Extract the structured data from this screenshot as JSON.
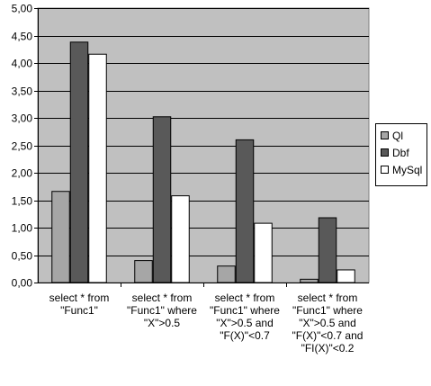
{
  "chart_data": {
    "type": "bar",
    "categories": [
      "select * from\n\"Func1\"",
      "select * from\n\"Func1\" where\n\"X\">0.5",
      "select * from\n\"Func1\" where\n\"X\">0.5 and\n\"F(X)\"<0.7",
      "select * from\n\"Func1\" where\n\"X\">0.5 and\n\"F(X)\"<0.7 and\n\"FI(X)\"<0.2"
    ],
    "series": [
      {
        "name": "Ql",
        "color": "#a6a6a6",
        "values": [
          1.66,
          0.4,
          0.3,
          0.06
        ]
      },
      {
        "name": "Dbf",
        "color": "#595959",
        "values": [
          4.38,
          3.02,
          2.6,
          1.18
        ]
      },
      {
        "name": "MySql",
        "color": "#ffffff",
        "values": [
          4.16,
          1.58,
          1.08,
          0.23
        ]
      }
    ],
    "ylim": [
      0,
      5
    ],
    "yticks": [
      "0,00",
      "0,50",
      "1,00",
      "1,50",
      "2,00",
      "2,50",
      "3,00",
      "3,50",
      "4,00",
      "4,50",
      "5,00"
    ],
    "grid": true,
    "plot_background": "#c0c0c0",
    "legend_position": "right"
  }
}
